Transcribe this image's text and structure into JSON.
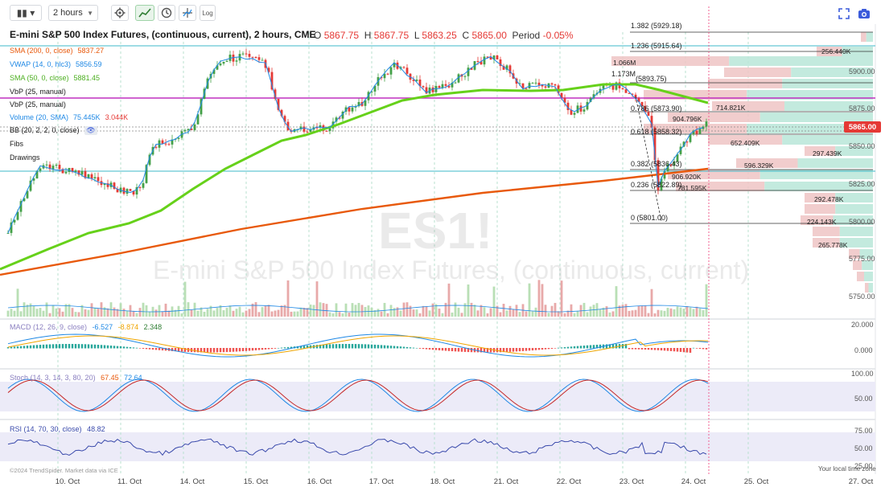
{
  "toolbar": {
    "interval": "2 hours",
    "log_label": "Log"
  },
  "header": {
    "title": "E-mini S&P 500 Index Futures, (continuous, current), 2 hours, CME",
    "open_label": "O",
    "open": "5867.75",
    "high_label": "H",
    "high": "5867.75",
    "low_label": "L",
    "low": "5863.25",
    "close_label": "C",
    "close": "5865.00",
    "period_label": "Period",
    "period": "-0.05%"
  },
  "indicators": [
    {
      "label": "SMA (200, 0, close)",
      "value": "5837.27",
      "color": "#e8590c"
    },
    {
      "label": "VWAP (14, 0, hlc3)",
      "value": "5856.59",
      "color": "#1e88e5"
    },
    {
      "label": "SMA (50, 0, close)",
      "value": "5881.45",
      "color": "#66d11a"
    },
    {
      "label": "VbP (25, manual)",
      "value": "",
      "color": "#1a1a1a"
    },
    {
      "label": "VbP (25, manual)",
      "value": "",
      "color": "#1a1a1a"
    },
    {
      "label": "Volume (20, SMA)",
      "value": "75.445K",
      "value2": "3.044K",
      "color": "#1e88e5"
    },
    {
      "label": "BB (20, 2, 2, 0, close)",
      "value": "",
      "color": "#1a1a1a"
    },
    {
      "label": "Fibs",
      "value": "",
      "color": "#1a1a1a"
    },
    {
      "label": "Drawings",
      "value": "",
      "color": "#1a1a1a"
    }
  ],
  "price_axis": [
    "5900.00",
    "5875.00",
    "5850.00",
    "5825.00",
    "5800.00",
    "5775.00",
    "5750.00"
  ],
  "last_price": "5865.00",
  "fib_levels": [
    "1.382 (5929.18)",
    "1.236 (5915.64)",
    "1.173M",
    "(5893.75)",
    "0.786 (5873.90)",
    "0.618 (5858.32)",
    "0.382 (5836.43)",
    "0.236 (5822.89)",
    "0 (5801.00)"
  ],
  "vbp_labels": [
    "256.440K",
    "1.066M",
    "714.821K",
    "904.796K",
    "652.409K",
    "297.439K",
    "596.329K",
    "906.920K",
    "781.595K",
    "292.478K",
    "224.143K",
    "265.778K"
  ],
  "watermark": {
    "symbol": "ES1!",
    "name": "E-mini S&P 500 Index Futures, (continuous, current)"
  },
  "macd": {
    "label": "MACD (12, 26, 9, close)",
    "v1": "-6.527",
    "v2": "-8.874",
    "v3": "2.348",
    "axis": [
      "20.000",
      "0.000"
    ]
  },
  "stoch": {
    "label": "Stoch (14, 3, 14, 3, 80, 20)",
    "v1": "67.45",
    "v2": "72.64",
    "axis": [
      "100.00",
      "50.00"
    ]
  },
  "rsi": {
    "label": "RSI (14, 70, 30, close)",
    "value": "48.82",
    "axis": [
      "75.00",
      "50.00",
      "25.00"
    ]
  },
  "x_axis": [
    "10. Oct",
    "11. Oct",
    "14. Oct",
    "15. Oct",
    "16. Oct",
    "17. Oct",
    "18. Oct",
    "21. Oct",
    "22. Oct",
    "23. Oct",
    "24. Oct",
    "25. Oct",
    "27. Oct"
  ],
  "footer": {
    "copyright": "©2024 TrendSpider. Market data via ICE",
    "timezone": "Your local time zone"
  },
  "colors": {
    "up": "#43a047",
    "down": "#e53935",
    "sma200": "#e8590c",
    "sma50": "#66d11a",
    "vwap": "#1e88e5",
    "accent": "#c030c0"
  }
}
